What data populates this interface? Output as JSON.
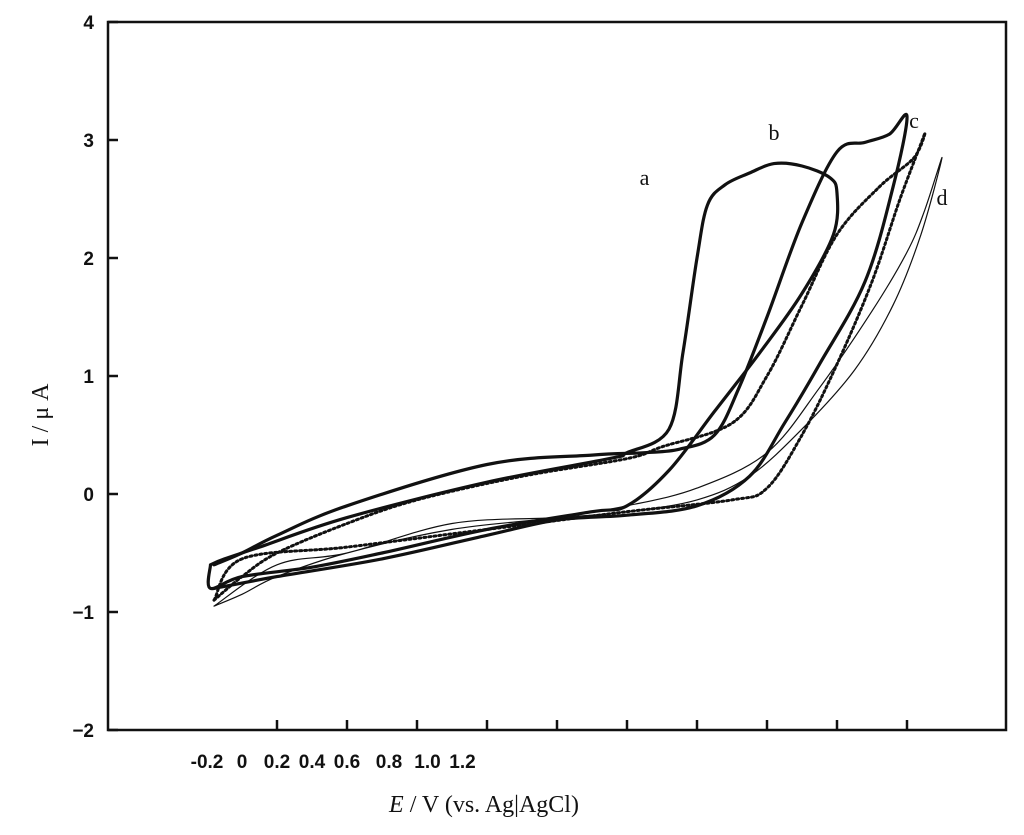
{
  "chart_data": {
    "type": "line",
    "xlabel": {
      "symbol": "E",
      "rest": " / V  (vs.  Ag|AgCl)"
    },
    "ylabel": "I / μ A",
    "xlim": [
      -0.2,
      1.8
    ],
    "ylim": [
      -2,
      4
    ],
    "y_ticks": [
      {
        "value": 4,
        "label": "4"
      },
      {
        "value": 3,
        "label": "3"
      },
      {
        "value": 2,
        "label": "2"
      },
      {
        "value": 1,
        "label": "1"
      },
      {
        "value": 0,
        "label": "0"
      },
      {
        "value": -1,
        "label": "−1"
      },
      {
        "value": -2,
        "label": "−2"
      }
    ],
    "x_tick_marks": [
      0.0,
      0.2,
      0.4,
      0.6,
      0.8,
      1.0,
      1.2,
      1.4,
      1.6,
      1.8
    ],
    "x_tick_labels": [
      {
        "value": -0.2,
        "label": "-0.2"
      },
      {
        "value": -0.1,
        "label": "0"
      },
      {
        "value": 0.0,
        "label": "0.2"
      },
      {
        "value": 0.1,
        "label": "0.4"
      },
      {
        "value": 0.2,
        "label": "0.6"
      },
      {
        "value": 0.32,
        "label": "0.8"
      },
      {
        "value": 0.43,
        "label": "1.0"
      },
      {
        "value": 0.53,
        "label": "1.2"
      }
    ],
    "grid": false,
    "series": [
      {
        "name": "a",
        "style": "thick",
        "label_at": [
          1.05,
          2.62
        ],
        "x": [
          -0.19,
          -0.15,
          -0.05,
          0.2,
          0.6,
          0.95,
          1.0,
          1.12,
          1.16,
          1.2,
          1.23,
          1.28,
          1.35,
          1.42,
          1.5,
          1.58,
          1.6,
          1.59,
          1.5,
          1.38,
          1.25,
          1.12,
          1.0,
          0.9,
          0.6,
          0.3,
          0.1,
          -0.1,
          -0.19,
          -0.19
        ],
        "y": [
          -0.6,
          -0.55,
          -0.45,
          -0.2,
          0.1,
          0.3,
          0.35,
          0.55,
          1.2,
          2.0,
          2.45,
          2.62,
          2.72,
          2.8,
          2.78,
          2.68,
          2.55,
          2.2,
          1.7,
          1.2,
          0.7,
          0.2,
          -0.1,
          -0.15,
          -0.3,
          -0.5,
          -0.62,
          -0.7,
          -0.8,
          -0.6
        ]
      },
      {
        "name": "b",
        "style": "thick",
        "label_at": [
          1.42,
          3.0
        ],
        "x": [
          -0.18,
          -0.1,
          0.0,
          0.2,
          0.6,
          0.9,
          1.05,
          1.15,
          1.25,
          1.32,
          1.4,
          1.5,
          1.6,
          1.68,
          1.75,
          1.8,
          1.76,
          1.68,
          1.55,
          1.45,
          1.35,
          1.2,
          1.0,
          0.8,
          0.6,
          0.3,
          0.0,
          -0.18
        ],
        "y": [
          -0.6,
          -0.5,
          -0.35,
          -0.1,
          0.25,
          0.33,
          0.35,
          0.38,
          0.5,
          0.9,
          1.5,
          2.3,
          2.9,
          2.98,
          3.05,
          3.2,
          2.6,
          1.8,
          1.1,
          0.6,
          0.15,
          -0.1,
          -0.18,
          -0.22,
          -0.35,
          -0.55,
          -0.7,
          -0.8
        ]
      },
      {
        "name": "c",
        "style": "dotted",
        "label_at": [
          1.82,
          3.1
        ],
        "x": [
          -0.18,
          -0.1,
          0.0,
          0.2,
          0.4,
          0.7,
          1.0,
          1.1,
          1.3,
          1.4,
          1.5,
          1.6,
          1.72,
          1.82,
          1.85,
          1.78,
          1.7,
          1.6,
          1.5,
          1.4,
          1.3,
          1.0,
          0.6,
          0.2,
          -0.1,
          -0.18
        ],
        "y": [
          -0.9,
          -0.7,
          -0.5,
          -0.25,
          -0.05,
          0.15,
          0.3,
          0.4,
          0.6,
          1.0,
          1.6,
          2.2,
          2.6,
          2.85,
          3.05,
          2.5,
          1.8,
          1.1,
          0.5,
          0.05,
          -0.05,
          -0.15,
          -0.3,
          -0.45,
          -0.55,
          -0.9
        ]
      },
      {
        "name": "d",
        "style": "thin",
        "label_at": [
          1.9,
          2.45
        ],
        "x": [
          -0.18,
          -0.1,
          0.0,
          0.2,
          0.5,
          0.8,
          1.0,
          1.2,
          1.4,
          1.55,
          1.7,
          1.8,
          1.85,
          1.9,
          1.84,
          1.76,
          1.65,
          1.5,
          1.35,
          1.2,
          1.0,
          0.8,
          0.5,
          0.2,
          0.0,
          -0.18
        ],
        "y": [
          -0.95,
          -0.85,
          -0.7,
          -0.5,
          -0.3,
          -0.2,
          -0.1,
          0.05,
          0.35,
          0.9,
          1.55,
          2.05,
          2.4,
          2.85,
          2.2,
          1.6,
          1.05,
          0.55,
          0.15,
          -0.05,
          -0.15,
          -0.2,
          -0.25,
          -0.5,
          -0.6,
          -0.95
        ]
      }
    ]
  }
}
